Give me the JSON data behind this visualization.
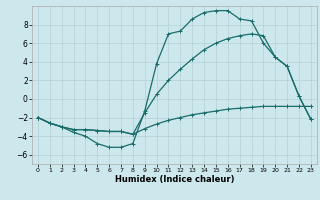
{
  "xlabel": "Humidex (Indice chaleur)",
  "bg_color": "#cce8ec",
  "line_color": "#1a6b6b",
  "grid_color": "#b8d4d8",
  "xlim": [
    -0.5,
    23.5
  ],
  "ylim": [
    -7,
    10
  ],
  "yticks": [
    -6,
    -4,
    -2,
    0,
    2,
    4,
    6,
    8
  ],
  "xticks": [
    0,
    1,
    2,
    3,
    4,
    5,
    6,
    7,
    8,
    9,
    10,
    11,
    12,
    13,
    14,
    15,
    16,
    17,
    18,
    19,
    20,
    21,
    22,
    23
  ],
  "line1_x": [
    0,
    1,
    2,
    3,
    4,
    5,
    6,
    7,
    8,
    9,
    10,
    11,
    12,
    13,
    14,
    15,
    16,
    17,
    18,
    19,
    20,
    21,
    22,
    23
  ],
  "line1_y": [
    -2.0,
    -2.6,
    -3.0,
    -3.6,
    -4.0,
    -4.8,
    -5.2,
    -5.2,
    -4.8,
    -1.3,
    3.8,
    7.0,
    7.3,
    8.6,
    9.3,
    9.5,
    9.5,
    8.6,
    8.4,
    6.0,
    4.5,
    3.5,
    0.3,
    -2.2
  ],
  "line2_x": [
    0,
    1,
    2,
    3,
    4,
    5,
    6,
    7,
    8,
    9,
    10,
    11,
    12,
    13,
    14,
    15,
    16,
    17,
    18,
    19,
    20,
    21,
    22,
    23
  ],
  "line2_y": [
    -2.0,
    -2.6,
    -3.0,
    -3.3,
    -3.3,
    -3.4,
    -3.5,
    -3.5,
    -3.8,
    -3.2,
    -2.7,
    -2.3,
    -2.0,
    -1.7,
    -1.5,
    -1.3,
    -1.1,
    -1.0,
    -0.9,
    -0.8,
    -0.8,
    -0.8,
    -0.8,
    -0.8
  ],
  "line3_x": [
    0,
    1,
    2,
    3,
    4,
    5,
    6,
    7,
    8,
    9,
    10,
    11,
    12,
    13,
    14,
    15,
    16,
    17,
    18,
    19,
    20,
    21,
    22,
    23
  ],
  "line3_y": [
    -2.0,
    -2.6,
    -3.0,
    -3.3,
    -3.3,
    -3.4,
    -3.5,
    -3.5,
    -3.8,
    -1.5,
    0.5,
    2.0,
    3.2,
    4.3,
    5.3,
    6.0,
    6.5,
    6.8,
    7.0,
    6.8,
    4.5,
    3.5,
    0.3,
    -2.2
  ],
  "markersize": 3,
  "linewidth": 0.9
}
